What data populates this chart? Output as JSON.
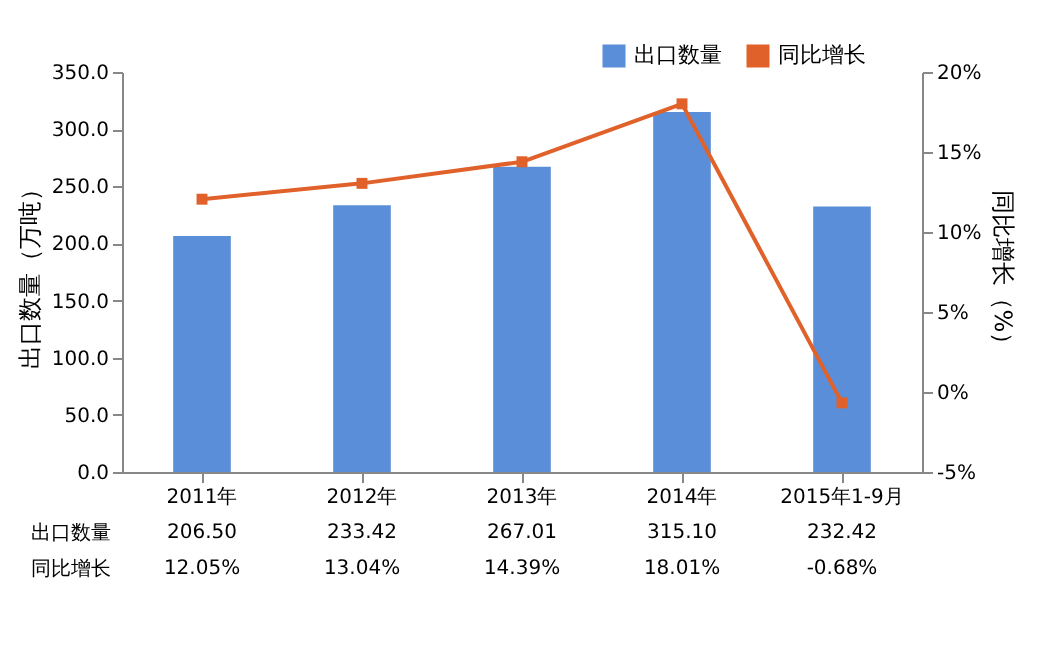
{
  "chart_data": {
    "type": "bar",
    "categories": [
      "2011年",
      "2012年",
      "2013年",
      "2014年",
      "2015年1-9月"
    ],
    "ylabel": "出口数量（万吨）",
    "y2label": "同比增长（%）",
    "ylim": [
      0,
      350
    ],
    "yticks": [
      {
        "value": 0,
        "label": "0.0"
      },
      {
        "value": 50,
        "label": "50.0"
      },
      {
        "value": 100,
        "label": "100.0"
      },
      {
        "value": 150,
        "label": "150.0"
      },
      {
        "value": 200,
        "label": "200.0"
      },
      {
        "value": 250,
        "label": "250.0"
      },
      {
        "value": 300,
        "label": "300.0"
      },
      {
        "value": 350,
        "label": "350.0"
      }
    ],
    "y2lim": [
      -5,
      20
    ],
    "y2ticks": [
      {
        "value": -5,
        "label": "-5%"
      },
      {
        "value": 0,
        "label": "0%"
      },
      {
        "value": 5,
        "label": "5%"
      },
      {
        "value": 10,
        "label": "10%"
      },
      {
        "value": 15,
        "label": "15%"
      },
      {
        "value": 20,
        "label": "20%"
      }
    ],
    "series": [
      {
        "name": "出口数量",
        "color": "#5b8ed8",
        "values": [
          206.5,
          233.42,
          267.01,
          315.1,
          232.42
        ],
        "value_labels": [
          "206.50",
          "233.42",
          "267.01",
          "315.10",
          "232.42"
        ]
      },
      {
        "name": "同比增长",
        "type": "line",
        "axis": "y2",
        "color": "#e0622a",
        "values": [
          12.05,
          13.04,
          14.39,
          18.01,
          -0.68
        ],
        "value_labels": [
          "12.05%",
          "13.04%",
          "14.39%",
          "18.01%",
          "-0.68%"
        ]
      }
    ],
    "legend": "top right",
    "marker": "square",
    "grid": false
  }
}
